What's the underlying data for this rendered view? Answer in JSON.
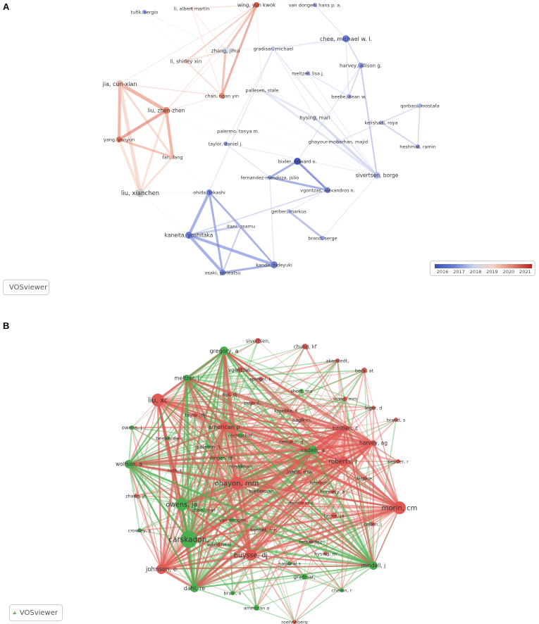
{
  "panels": [
    {
      "letter": "A",
      "legend": {
        "ticks": [
          "2016",
          "2017",
          "2018",
          "2019",
          "2020",
          "2021"
        ],
        "colors": [
          "#3a4fb4",
          "#6a7fd0",
          "#c9d3ee",
          "#f4d0c4",
          "#e08270",
          "#b81f1f"
        ]
      },
      "badge": "VOSviewer",
      "nodes": [
        {
          "id": "tufik",
          "label": "tufik, sergio",
          "c": "#8d9be0"
        },
        {
          "id": "liam",
          "label": "li, albert martin",
          "c": "#f2b9a8"
        },
        {
          "id": "wing",
          "label": "wing, yun kwok",
          "c": "#d9614c"
        },
        {
          "id": "vand",
          "label": "van dongen, hans p. a.",
          "c": "#8d9be0"
        },
        {
          "id": "chee",
          "label": "chee, michael w. l.",
          "c": "#6c7fd6"
        },
        {
          "id": "zhang",
          "label": "zhang, jihui",
          "c": "#d9dff4"
        },
        {
          "id": "grad",
          "label": "gradisar, michael",
          "c": "#b9c3ea"
        },
        {
          "id": "harv",
          "label": "harvey, allison g.",
          "c": "#8d9be0"
        },
        {
          "id": "lisx",
          "label": "li, shirley xin",
          "c": "#f4c7b8"
        },
        {
          "id": "meltz",
          "label": "meltzer, lisa j.",
          "c": "#8d9be0"
        },
        {
          "id": "jia",
          "label": "jia, cun-xian",
          "c": "#f2b9a8"
        },
        {
          "id": "pall",
          "label": "pallesen, stale",
          "c": "#dde3f5"
        },
        {
          "id": "chan",
          "label": "chan, ngan yin",
          "c": "#e9876f"
        },
        {
          "id": "beebe",
          "label": "beebe, dean w.",
          "c": "#8d9be0"
        },
        {
          "id": "qorb",
          "label": "qorbani, mostafa",
          "c": "#a8b4e6"
        },
        {
          "id": "liuzz",
          "label": "liu, zhen-zhen",
          "c": "#e9876f"
        },
        {
          "id": "hysing",
          "label": "hysing, mari",
          "c": "#c9d1ee"
        },
        {
          "id": "kelish",
          "label": "kelishadi, roya",
          "c": "#a8b4e6"
        },
        {
          "id": "palermo",
          "label": "palermo, tonya m.",
          "c": "#e6e9f5"
        },
        {
          "id": "ghay",
          "label": "ghayour-mobarhan, majid",
          "c": "#c9d1ee"
        },
        {
          "id": "yang",
          "label": "yang, yanyun",
          "c": "#e06e56"
        },
        {
          "id": "taylor",
          "label": "taylor, daniel j.",
          "c": "#8d9be0"
        },
        {
          "id": "heshm",
          "label": "heshmat, ramin",
          "c": "#8d9be0"
        },
        {
          "id": "fan",
          "label": "fan, fang",
          "c": "#f2b9a8"
        },
        {
          "id": "bixler",
          "label": "bixler, edward o.",
          "c": "#4457c4"
        },
        {
          "id": "fern",
          "label": "fernandez-mendoza, julio",
          "c": "#8d9be0"
        },
        {
          "id": "sivert",
          "label": "sivertsen, borge",
          "c": "#b9c3ea"
        },
        {
          "id": "liuxc",
          "label": "liu, xianchen",
          "c": "#cfcfd4"
        },
        {
          "id": "ohida",
          "label": "ohida, takashi",
          "c": "#6c7fd6"
        },
        {
          "id": "vgonz",
          "label": "vgontzas, alexandros n.",
          "c": "#6c7fd6"
        },
        {
          "id": "gerber",
          "label": "gerber, markus",
          "c": "#a8b4e6"
        },
        {
          "id": "itani",
          "label": "itani, osamu",
          "c": "#e6e9f5"
        },
        {
          "id": "kaneita",
          "label": "kaneita, yoshitaka",
          "c": "#6c7fd6"
        },
        {
          "id": "brand",
          "label": "brand, serge",
          "c": "#8d9be0"
        },
        {
          "id": "kanda",
          "label": "kanda, hideyuki",
          "c": "#6c7fd6"
        },
        {
          "id": "osaki",
          "label": "osaki, yoneatsu",
          "c": "#6c7fd6"
        }
      ]
    },
    {
      "letter": "B",
      "badge": "VOSviewer",
      "nodes": [
        {
          "id": "sivert",
          "label": "sivertsen,",
          "c": "#e05a55"
        },
        {
          "id": "chung",
          "label": "chung, kf",
          "c": "#e05a55"
        },
        {
          "id": "gregory",
          "label": "gregory, a",
          "c": "#4caf50"
        },
        {
          "id": "akerst",
          "label": "akerstedt,",
          "c": "#e05a55"
        },
        {
          "id": "vgonz",
          "label": "vgontzas,",
          "c": "#e05a55"
        },
        {
          "id": "beck",
          "label": "beck, at",
          "c": "#e05a55"
        },
        {
          "id": "spiegel",
          "label": "spiegel, k",
          "c": "#e05a55"
        },
        {
          "id": "meltzer",
          "label": "meltzer, l",
          "c": "#4caf50"
        },
        {
          "id": "dijk",
          "label": "dijk, dj",
          "c": "#e05a55"
        },
        {
          "id": "short",
          "label": "short, ma",
          "c": "#4caf50"
        },
        {
          "id": "liu",
          "label": "liu, xc",
          "c": "#e05a55"
        },
        {
          "id": "tafjord",
          "label": "tafjord,",
          "c": "#e05a55"
        },
        {
          "id": "wong",
          "label": "wong, mm",
          "c": "#e05a55"
        },
        {
          "id": "leger",
          "label": "leger, d",
          "c": "#e05a55"
        },
        {
          "id": "kroenke",
          "label": "kroenke, k",
          "c": "#e05a55"
        },
        {
          "id": "taylor",
          "label": "taylor, dj",
          "c": "#e05a55"
        },
        {
          "id": "brand",
          "label": "brand, s",
          "c": "#e05a55"
        },
        {
          "id": "baglioni",
          "label": "baglioni,",
          "c": "#e05a55"
        },
        {
          "id": "american",
          "label": "american p",
          "c": "#e05a55"
        },
        {
          "id": "bastien",
          "label": "bastien, c",
          "c": "#e05a55"
        },
        {
          "id": "owensj",
          "label": "owens, j",
          "c": "#4caf50"
        },
        {
          "id": "rechtsch",
          "label": "rechtschaf",
          "c": "#4caf50"
        },
        {
          "id": "beebe",
          "label": "beebe, dw",
          "c": "#4caf50"
        },
        {
          "id": "riemann",
          "label": "riemann, d",
          "c": "#e05a55"
        },
        {
          "id": "harvey",
          "label": "harvey, ag",
          "c": "#e05a55"
        },
        {
          "id": "palermo",
          "label": "palermo, t",
          "c": "#4caf50"
        },
        {
          "id": "sadeh",
          "label": "sadeh, a",
          "c": "#4caf50"
        },
        {
          "id": "kessler",
          "label": "kessler, r",
          "c": "#e05a55"
        },
        {
          "id": "dinges",
          "label": "dinges, df",
          "c": "#4caf50"
        },
        {
          "id": "wolfson",
          "label": "wolfson, a",
          "c": "#4caf50"
        },
        {
          "id": "roberts",
          "label": "roberts, r",
          "c": "#e05a55"
        },
        {
          "id": "hirshk",
          "label": "hirshkowit",
          "c": "#4caf50"
        },
        {
          "id": "roth",
          "label": "roth, t",
          "c": "#e05a55"
        },
        {
          "id": "johns",
          "label": "johns, mw",
          "c": "#e05a55"
        },
        {
          "id": "kilgore",
          "label": "kilgore,",
          "c": "#e05a55"
        },
        {
          "id": "ohayon",
          "label": "ohayon, mm",
          "c": "#e05a55"
        },
        {
          "id": "harrison",
          "label": "harrison,",
          "c": "#e05a55"
        },
        {
          "id": "biedermn",
          "label": "biederman,",
          "c": "#e05a55"
        },
        {
          "id": "bonnety",
          "label": "bonnety, a",
          "c": "#e05a55"
        },
        {
          "id": "zhang",
          "label": "zhang, jh",
          "c": "#e05a55"
        },
        {
          "id": "morin",
          "label": "morin, cm",
          "c": "#e05a55"
        },
        {
          "id": "owensja",
          "label": "owens, ja",
          "c": "#4caf50"
        },
        {
          "id": "drummond",
          "label": "drummond,",
          "c": "#e05a55"
        },
        {
          "id": "chee",
          "label": "chee, mwl",
          "c": "#4caf50"
        },
        {
          "id": "horne",
          "label": "horne, ja",
          "c": "#e05a55"
        },
        {
          "id": "vandong",
          "label": "van dongen",
          "c": "#4caf50"
        },
        {
          "id": "crowley",
          "label": "crowley, s",
          "c": "#4caf50"
        },
        {
          "id": "colten",
          "label": "colten, j",
          "c": "#e05a55"
        },
        {
          "id": "bonnet",
          "label": "bonnet, mh",
          "c": "#e05a55"
        },
        {
          "id": "carskadon",
          "label": "carskadon,",
          "c": "#4caf50"
        },
        {
          "id": "worldheal",
          "label": "world heal",
          "c": "#e05a55"
        },
        {
          "id": "fernandez",
          "label": "fernandez-",
          "c": "#e05a55"
        },
        {
          "id": "hysing",
          "label": "hysing, m",
          "c": "#e05a55"
        },
        {
          "id": "buysse",
          "label": "buysse, dj",
          "c": "#e05a55"
        },
        {
          "id": "johnson",
          "label": "johnson, e",
          "c": "#e05a55"
        },
        {
          "id": "mindell",
          "label": "mindell, j",
          "c": "#4caf50"
        },
        {
          "id": "national",
          "label": "national s",
          "c": "#4caf50"
        },
        {
          "id": "gradisar",
          "label": "gradisar,",
          "c": "#4caf50"
        },
        {
          "id": "dahl",
          "label": "dahl, re",
          "c": "#4caf50"
        },
        {
          "id": "bruni",
          "label": "bruni, o",
          "c": "#4caf50"
        },
        {
          "id": "cheron",
          "label": "cheron, r",
          "c": "#4caf50"
        },
        {
          "id": "americana",
          "label": "american a",
          "c": "#4caf50"
        },
        {
          "id": "roenneb",
          "label": "roenneberg",
          "c": "#e05a55"
        }
      ]
    }
  ]
}
